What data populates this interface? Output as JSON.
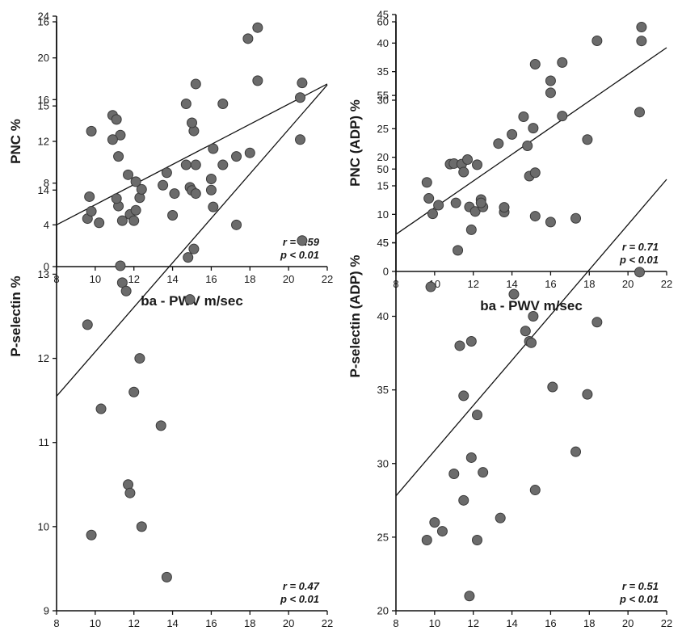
{
  "chart_data": [
    {
      "type": "scatter",
      "xlabel": "ba - PWV m/sec",
      "ylabel": "PNC %",
      "xlim": [
        8,
        22
      ],
      "ylim": [
        0,
        24
      ],
      "xticks": [
        8,
        10,
        12,
        14,
        16,
        18,
        20,
        22
      ],
      "yticks": [
        0,
        4,
        8,
        12,
        16,
        20,
        24
      ],
      "stats": [
        "r = 0.59",
        "p < 0.01"
      ],
      "regression": {
        "x": [
          8,
          22
        ],
        "y": [
          4.0,
          17.5
        ]
      },
      "points": [
        [
          9.6,
          4.6
        ],
        [
          9.7,
          6.7
        ],
        [
          9.8,
          5.3
        ],
        [
          10.2,
          4.2
        ],
        [
          10.9,
          14.5
        ],
        [
          11.1,
          14.1
        ],
        [
          11.2,
          5.8
        ],
        [
          11.3,
          12.6
        ],
        [
          11.4,
          4.4
        ],
        [
          11.7,
          8.8
        ],
        [
          11.8,
          5.0
        ],
        [
          12.0,
          4.4
        ],
        [
          12.1,
          5.4
        ],
        [
          12.3,
          6.6
        ],
        [
          12.4,
          7.4
        ],
        [
          13.5,
          7.8
        ],
        [
          13.7,
          9.0
        ],
        [
          14.1,
          7.0
        ],
        [
          14.7,
          15.6
        ],
        [
          14.9,
          7.6
        ],
        [
          15.0,
          7.3
        ],
        [
          15.1,
          13.0
        ],
        [
          15.2,
          17.5
        ],
        [
          15.2,
          7.0
        ],
        [
          16.0,
          8.4
        ],
        [
          16.1,
          11.3
        ],
        [
          16.6,
          15.6
        ],
        [
          17.3,
          4.0
        ],
        [
          18.0,
          10.9
        ],
        [
          18.4,
          22.9
        ],
        [
          20.6,
          16.2
        ],
        [
          20.7,
          17.6
        ]
      ]
    },
    {
      "type": "scatter",
      "xlabel": "ba - PWV m/sec",
      "ylabel": "PNC (ADP) %",
      "xlim": [
        8,
        22
      ],
      "ylim": [
        0,
        45
      ],
      "xticks": [
        8,
        10,
        12,
        14,
        16,
        18,
        20,
        22
      ],
      "yticks": [
        0,
        5,
        10,
        15,
        20,
        25,
        30,
        35,
        40,
        45
      ],
      "stats": [
        "r = 0.71",
        "p < 0.01"
      ],
      "regression": {
        "x": [
          8,
          22
        ],
        "y": [
          6.5,
          39.2
        ]
      },
      "points": [
        [
          9.6,
          15.6
        ],
        [
          9.7,
          12.8
        ],
        [
          9.9,
          10.1
        ],
        [
          10.2,
          11.6
        ],
        [
          10.8,
          18.8
        ],
        [
          11.0,
          18.9
        ],
        [
          11.2,
          3.7
        ],
        [
          11.4,
          18.8
        ],
        [
          11.5,
          17.4
        ],
        [
          11.7,
          19.6
        ],
        [
          11.8,
          11.3
        ],
        [
          11.9,
          7.3
        ],
        [
          12.1,
          10.5
        ],
        [
          12.2,
          18.7
        ],
        [
          12.4,
          12.6
        ],
        [
          12.5,
          11.3
        ],
        [
          13.3,
          22.4
        ],
        [
          13.6,
          10.4
        ],
        [
          14.0,
          24.0
        ],
        [
          14.6,
          27.1
        ],
        [
          14.8,
          22.0
        ],
        [
          14.9,
          16.7
        ],
        [
          15.1,
          25.1
        ],
        [
          15.2,
          17.3
        ],
        [
          15.2,
          36.3
        ],
        [
          16.0,
          33.4
        ],
        [
          16.0,
          31.3
        ],
        [
          16.6,
          36.6
        ],
        [
          17.3,
          9.3
        ],
        [
          17.9,
          23.1
        ],
        [
          18.4,
          40.4
        ],
        [
          20.6,
          27.9
        ],
        [
          20.7,
          42.8
        ]
      ]
    },
    {
      "type": "scatter",
      "xlabel": "ba - PWV m/sec",
      "ylabel": "P-selectin %",
      "xlim": [
        8,
        22
      ],
      "ylim": [
        9,
        16
      ],
      "xticks": [
        8,
        10,
        12,
        14,
        16,
        18,
        20,
        22
      ],
      "yticks": [
        9,
        10,
        11,
        12,
        13,
        14,
        15,
        16
      ],
      "stats": [
        "r = 0.47",
        "p < 0.01"
      ],
      "regression": {
        "x": [
          8,
          22
        ],
        "y": [
          11.55,
          15.25
        ]
      },
      "points": [
        [
          9.6,
          12.4
        ],
        [
          9.8,
          14.7
        ],
        [
          9.8,
          9.9
        ],
        [
          10.3,
          11.4
        ],
        [
          10.9,
          14.6
        ],
        [
          11.1,
          13.9
        ],
        [
          11.2,
          14.4
        ],
        [
          11.3,
          13.1
        ],
        [
          11.4,
          12.9
        ],
        [
          11.6,
          12.8
        ],
        [
          11.7,
          10.5
        ],
        [
          11.8,
          10.4
        ],
        [
          12.0,
          11.6
        ],
        [
          12.1,
          14.1
        ],
        [
          12.3,
          12.0
        ],
        [
          12.4,
          10.0
        ],
        [
          13.4,
          11.2
        ],
        [
          13.7,
          9.4
        ],
        [
          14.0,
          13.7
        ],
        [
          14.7,
          14.3
        ],
        [
          14.8,
          13.2
        ],
        [
          14.9,
          12.7
        ],
        [
          15.0,
          14.8
        ],
        [
          15.1,
          13.3
        ],
        [
          15.2,
          14.3
        ],
        [
          16.0,
          14.0
        ],
        [
          16.1,
          13.8
        ],
        [
          16.6,
          14.3
        ],
        [
          17.3,
          14.4
        ],
        [
          17.9,
          15.8
        ],
        [
          18.4,
          15.3
        ],
        [
          20.6,
          14.6
        ],
        [
          20.7,
          13.4
        ]
      ]
    },
    {
      "type": "scatter",
      "xlabel": "ba - PWV m/sec",
      "ylabel": "P-selectin (ADP) %",
      "xlim": [
        8,
        22
      ],
      "ylim": [
        20,
        60
      ],
      "xticks": [
        8,
        10,
        12,
        14,
        16,
        18,
        20,
        22
      ],
      "yticks": [
        20,
        25,
        30,
        35,
        40,
        45,
        50,
        55,
        60
      ],
      "stats": [
        "r = 0.51",
        "p < 0.01"
      ],
      "regression": {
        "x": [
          8,
          22
        ],
        "y": [
          27.8,
          49.3
        ]
      },
      "points": [
        [
          9.6,
          24.8
        ],
        [
          9.8,
          42.0
        ],
        [
          10.0,
          26.0
        ],
        [
          10.4,
          25.4
        ],
        [
          11.0,
          29.3
        ],
        [
          11.1,
          47.7
        ],
        [
          11.3,
          38.0
        ],
        [
          11.5,
          27.5
        ],
        [
          11.5,
          34.6
        ],
        [
          11.8,
          21.0
        ],
        [
          11.9,
          38.3
        ],
        [
          11.9,
          30.4
        ],
        [
          12.2,
          24.8
        ],
        [
          12.2,
          33.3
        ],
        [
          12.4,
          47.7
        ],
        [
          12.5,
          29.4
        ],
        [
          13.4,
          26.3
        ],
        [
          13.6,
          47.4
        ],
        [
          14.1,
          41.5
        ],
        [
          14.7,
          39.0
        ],
        [
          14.9,
          38.3
        ],
        [
          15.0,
          38.2
        ],
        [
          15.1,
          40.0
        ],
        [
          15.2,
          28.2
        ],
        [
          15.2,
          46.8
        ],
        [
          16.0,
          46.4
        ],
        [
          16.1,
          35.2
        ],
        [
          16.6,
          53.6
        ],
        [
          17.3,
          30.8
        ],
        [
          17.9,
          34.7
        ],
        [
          18.4,
          39.6
        ],
        [
          20.6,
          43.0
        ],
        [
          20.7,
          58.7
        ]
      ]
    }
  ]
}
